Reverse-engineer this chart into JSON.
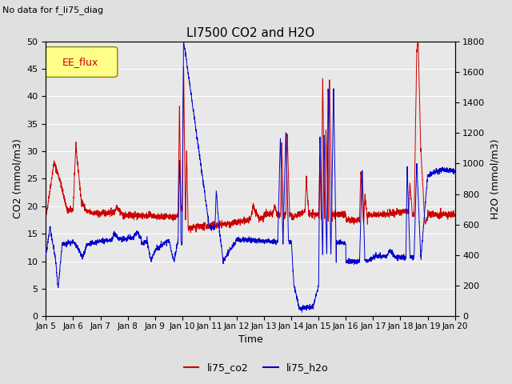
{
  "title": "LI7500 CO2 and H2O",
  "suptitle": "No data for f_li75_diag",
  "xlabel": "Time",
  "ylabel_left": "CO2 (mmol/m3)",
  "ylabel_right": "H2O (mmol/m3)",
  "ylim_left": [
    0,
    50
  ],
  "ylim_right": [
    0,
    1800
  ],
  "xtick_labels": [
    "Jan 5",
    "Jan 6",
    "Jan 7",
    "Jan 8",
    "Jan 9",
    "Jan 10",
    "Jan 11",
    "Jan 12",
    "Jan 13",
    "Jan 14",
    "Jan 15",
    "Jan 16",
    "Jan 17",
    "Jan 18",
    "Jan 19",
    "Jan 20"
  ],
  "legend_label_co2": "li75_co2",
  "legend_label_h2o": "li75_h2o",
  "legend_box_label": "EE_flux",
  "color_co2": "#cc0000",
  "color_h2o": "#0000cc",
  "background_color": "#e8e8e8",
  "grid_color": "#ffffff",
  "legend_box_color": "#ffff88",
  "fig_bg": "#e0e0e0"
}
